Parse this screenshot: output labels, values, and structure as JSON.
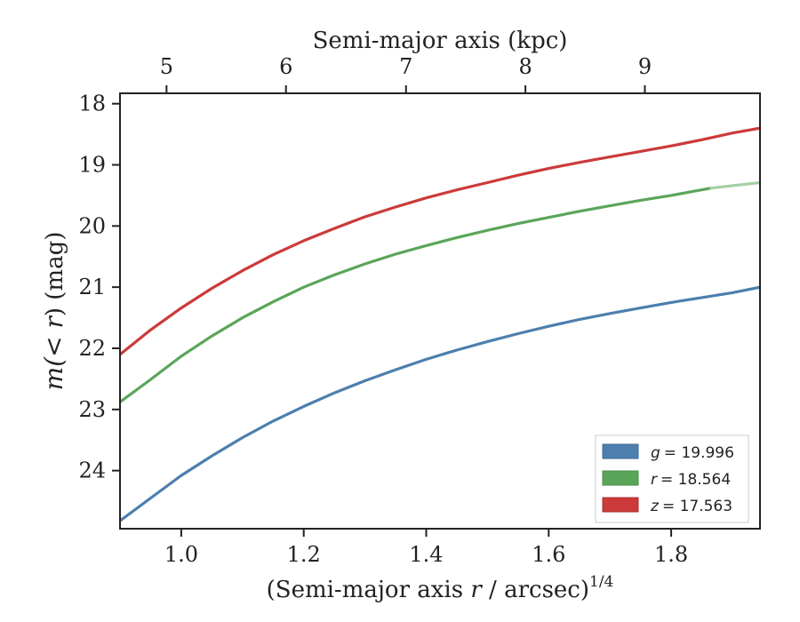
{
  "chart_data": {
    "type": "line",
    "title": "",
    "xlabel": {
      "prefix": "(Semi-major axis ",
      "var": "r",
      "suffix": " / arcsec)",
      "sup": "1/4"
    },
    "ylabel": {
      "prefix": "m(",
      "var": "< r",
      "suffix": ") (mag)"
    },
    "top_xlabel": "Semi-major axis (kpc)",
    "xlim": [
      0.9,
      1.945
    ],
    "ylim": [
      24.95,
      17.83
    ],
    "y_inverted": true,
    "x_ticks": [
      "1.0",
      "1.2",
      "1.4",
      "1.6",
      "1.8"
    ],
    "y_ticks": [
      "18",
      "19",
      "20",
      "21",
      "22",
      "23",
      "24"
    ],
    "top_ticks": [
      "5",
      "6",
      "7",
      "8",
      "9"
    ],
    "top_tick_x_positions": [
      0.976,
      1.171,
      1.367,
      1.562,
      1.757
    ],
    "grid": false,
    "legend_position": "lower-right",
    "series": [
      {
        "name": "g = 19.996",
        "legend_var": "g",
        "legend_value": "= 19.996",
        "color": "#4c7fae",
        "x": [
          0.9,
          0.95,
          1.0,
          1.05,
          1.1,
          1.15,
          1.2,
          1.25,
          1.3,
          1.35,
          1.4,
          1.45,
          1.5,
          1.55,
          1.6,
          1.65,
          1.7,
          1.75,
          1.8,
          1.85,
          1.9,
          1.945
        ],
        "y": [
          24.82,
          24.45,
          24.08,
          23.76,
          23.46,
          23.19,
          22.95,
          22.73,
          22.53,
          22.35,
          22.18,
          22.03,
          21.89,
          21.76,
          21.64,
          21.53,
          21.43,
          21.34,
          21.25,
          21.17,
          21.09,
          21.0
        ]
      },
      {
        "name": "r = 18.564",
        "legend_var": "r",
        "legend_value": "= 18.564",
        "color": "#5aa55a",
        "x": [
          0.9,
          0.95,
          1.0,
          1.05,
          1.1,
          1.15,
          1.2,
          1.25,
          1.3,
          1.35,
          1.4,
          1.45,
          1.5,
          1.55,
          1.6,
          1.65,
          1.7,
          1.75,
          1.8,
          1.865
        ],
        "y": [
          22.88,
          22.51,
          22.13,
          21.8,
          21.5,
          21.24,
          21.0,
          20.8,
          20.62,
          20.46,
          20.32,
          20.19,
          20.07,
          19.96,
          19.86,
          19.76,
          19.67,
          19.58,
          19.5,
          19.38
        ]
      },
      {
        "name": "z = 17.563",
        "legend_var": "z",
        "legend_value": "= 17.563",
        "color": "#cc3a3a",
        "x": [
          0.9,
          0.95,
          1.0,
          1.05,
          1.1,
          1.15,
          1.2,
          1.25,
          1.3,
          1.35,
          1.4,
          1.45,
          1.5,
          1.55,
          1.6,
          1.65,
          1.7,
          1.75,
          1.8,
          1.85,
          1.9,
          1.945
        ],
        "y": [
          22.1,
          21.7,
          21.34,
          21.02,
          20.73,
          20.47,
          20.24,
          20.04,
          19.85,
          19.69,
          19.54,
          19.41,
          19.29,
          19.17,
          19.06,
          18.96,
          18.87,
          18.78,
          18.69,
          18.59,
          18.48,
          18.4
        ]
      }
    ],
    "extrapolation": {
      "series": "r = 18.564",
      "color": "#a5cfa5",
      "x": [
        1.865,
        1.945
      ],
      "y": [
        19.38,
        19.29
      ]
    }
  }
}
